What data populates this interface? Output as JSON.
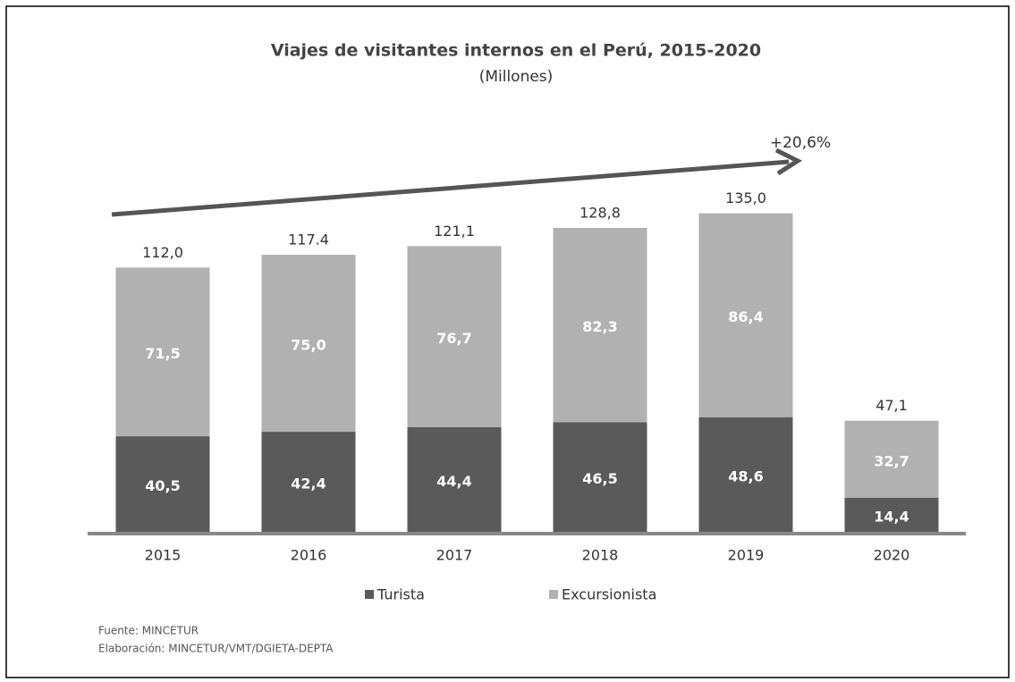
{
  "chart_data": {
    "type": "stacked_bar",
    "title": "Viajes de visitantes internos en el Perú, 2015-2020",
    "subtitle": "(Millones)",
    "categories": [
      "2015",
      "2016",
      "2017",
      "2018",
      "2019",
      "2020"
    ],
    "series": [
      {
        "name": "Turista",
        "color": "#5a5a5a",
        "values": [
          40.5,
          42.4,
          44.4,
          46.5,
          48.6,
          14.4
        ],
        "value_labels": [
          "40,5",
          "42,4",
          "44,4",
          "46,5",
          "48,6",
          "14,4"
        ]
      },
      {
        "name": "Excursionista",
        "color": "#b1b1b1",
        "values": [
          71.5,
          75.0,
          76.7,
          82.3,
          86.4,
          32.7
        ],
        "value_labels": [
          "71,5",
          "75,0",
          "76,7",
          "82,3",
          "86,4",
          "32,7"
        ]
      }
    ],
    "totals": [
      112.0,
      117.4,
      121.1,
      128.8,
      135.0,
      47.1
    ],
    "total_labels": [
      "112,0",
      "117.4",
      "121,1",
      "128,8",
      "135,0",
      "47,1"
    ],
    "annotation": "+20,6%",
    "source": "Fuente:  MINCETUR",
    "credit": "Elaboración: MINCETUR/VMT/DGIETA-DEPTA"
  }
}
